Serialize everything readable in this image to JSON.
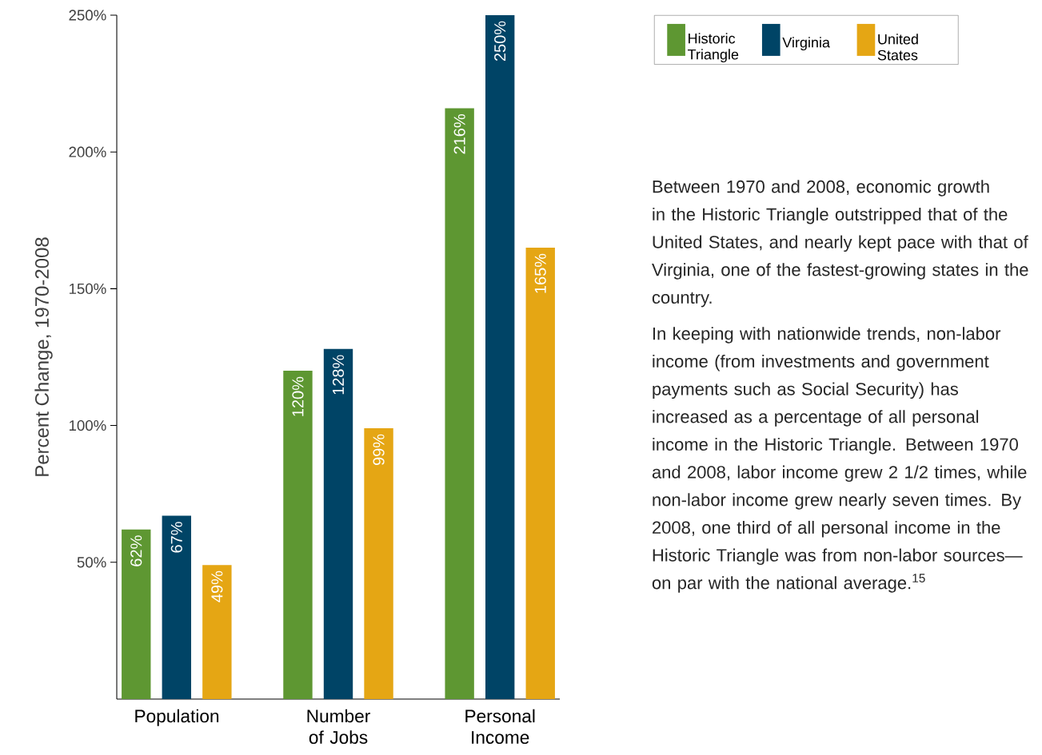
{
  "chart_data": {
    "type": "bar",
    "ylabel": "Percent Change, 1970-2008",
    "categories": [
      "Population",
      "Number of Jobs",
      "Personal Income"
    ],
    "series": [
      {
        "name": "Historic Triangle",
        "color": "#5e9732",
        "values": [
          62,
          120,
          216
        ],
        "value_labels": [
          "62%",
          "120%",
          "216%"
        ]
      },
      {
        "name": "Virginia",
        "color": "#004466",
        "values": [
          67,
          128,
          250
        ],
        "value_labels": [
          "67%",
          "128%",
          "250%"
        ]
      },
      {
        "name": "United States",
        "color": "#e5a614",
        "values": [
          49,
          99,
          165
        ],
        "value_labels": [
          "49%",
          "99%",
          "165%"
        ]
      }
    ],
    "ylim": [
      0,
      250
    ],
    "yticks": [
      {
        "value": 50,
        "label": "50%"
      },
      {
        "value": 100,
        "label": "100%"
      },
      {
        "value": 150,
        "label": "150%"
      },
      {
        "value": 200,
        "label": "200%"
      },
      {
        "value": 250,
        "label": "250%"
      }
    ],
    "legend": "top right",
    "annotations": [
      "Between 1970 and 2008, economic growth in the Historic Triangle outstripped that of the United States, and nearly kept pace with that of Virginia, one of the fastest-growing states in the country.",
      "In keeping with nationwide trends, non-labor income (from investments and government payments such as Social Security) has increased as a percentage of all personal income in the Historic Triangle. Between 1970 and 2008, labor income grew 2 1/2 times, while non-labor income grew nearly seven times. By 2008, one third of all personal income in the Historic Triangle was from non-labor sources—on par with the national average.$^{15}$"
    ]
  }
}
